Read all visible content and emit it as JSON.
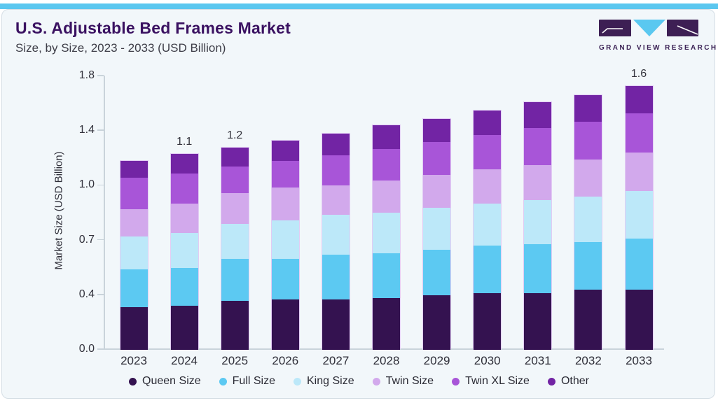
{
  "header": {
    "title": "U.S. Adjustable Bed Frames Market",
    "subtitle": "Size, by Size, 2023 - 2033 (USD Billion)",
    "logo_text": "GRAND VIEW RESEARCH"
  },
  "chart_data": {
    "type": "bar",
    "stacked": true,
    "title": "U.S. Adjustable Bed Frames Market Size, by Size, 2023 - 2033 (USD Billion)",
    "xlabel": "",
    "ylabel": "Market Size (USD Billion)",
    "categories": [
      "2023",
      "2024",
      "2025",
      "2026",
      "2027",
      "2028",
      "2029",
      "2030",
      "2031",
      "2032",
      "2033"
    ],
    "yticks": [
      0.0,
      0.4,
      0.7,
      1.0,
      1.4,
      1.8
    ],
    "ytick_labels": [
      "0.0",
      "0.4",
      "0.7",
      "1.0",
      "1.4",
      "1.8"
    ],
    "ylim": [
      0.0,
      1.8
    ],
    "grid": false,
    "legend_position": "bottom",
    "series": [
      {
        "name": "Queen Size",
        "color": "#341250",
        "values": [
          0.31,
          0.32,
          0.36,
          0.37,
          0.37,
          0.38,
          0.4,
          0.41,
          0.41,
          0.43,
          0.43
        ]
      },
      {
        "name": "Full Size",
        "color": "#5cc9f2",
        "values": [
          0.23,
          0.23,
          0.24,
          0.23,
          0.25,
          0.25,
          0.25,
          0.26,
          0.27,
          0.26,
          0.28
        ]
      },
      {
        "name": "King Size",
        "color": "#bce8f9",
        "values": [
          0.18,
          0.19,
          0.19,
          0.21,
          0.22,
          0.22,
          0.23,
          0.23,
          0.24,
          0.25,
          0.26
        ]
      },
      {
        "name": "Twin Size",
        "color": "#d2a9ec",
        "values": [
          0.15,
          0.16,
          0.17,
          0.18,
          0.16,
          0.19,
          0.2,
          0.22,
          0.23,
          0.25,
          0.27
        ]
      },
      {
        "name": "Twin XL Size",
        "color": "#a855d8",
        "values": [
          0.19,
          0.19,
          0.18,
          0.19,
          0.22,
          0.23,
          0.24,
          0.25,
          0.27,
          0.28,
          0.29
        ]
      },
      {
        "name": "Other",
        "color": "#7224a4",
        "values": [
          0.12,
          0.14,
          0.14,
          0.15,
          0.16,
          0.17,
          0.17,
          0.18,
          0.19,
          0.19,
          0.2
        ]
      }
    ],
    "bar_total_labels": {
      "2024": "1.1",
      "2025": "1.2",
      "2033": "1.6"
    }
  },
  "colors": {
    "accent_bar": "#5bc7ef",
    "card_background": "#f2f7fa",
    "card_border": "#d5dee5",
    "title_text": "#3a1161",
    "axis_line": "#c9d3da",
    "logo_purple": "#3d1f54",
    "logo_blue": "#5ac8f0"
  }
}
